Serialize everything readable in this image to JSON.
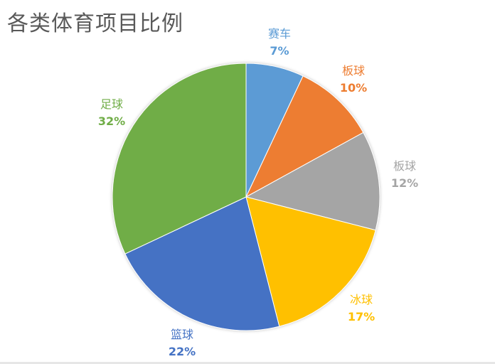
{
  "chart_data": {
    "type": "pie",
    "title": "各类体育项目比例",
    "categories": [
      "赛车",
      "板球",
      "板球",
      "冰球",
      "篮球",
      "足球"
    ],
    "values": [
      7,
      10,
      12,
      17,
      22,
      32
    ],
    "colors": [
      "#5B9BD5",
      "#ED7D31",
      "#A5A5A5",
      "#FFC000",
      "#4472C4",
      "#70AD47"
    ],
    "labels": [
      {
        "name": "赛车",
        "pct": "7%"
      },
      {
        "name": "板球",
        "pct": "10%"
      },
      {
        "name": "板球",
        "pct": "12%"
      },
      {
        "name": "冰球",
        "pct": "17%"
      },
      {
        "name": "篮球",
        "pct": "22%"
      },
      {
        "name": "足球",
        "pct": "32%"
      }
    ],
    "legend": "none",
    "start_angle": "12 o'clock, clockwise"
  }
}
